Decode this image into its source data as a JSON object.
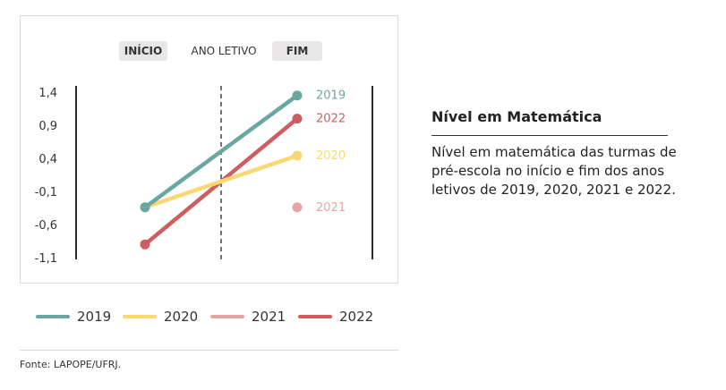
{
  "chart_data": {
    "type": "line",
    "header": {
      "start_label": "INÍCIO",
      "period_label": "ANO LETIVO",
      "end_label": "FIM"
    },
    "categories": [
      "INÍCIO",
      "FIM"
    ],
    "ylim": [
      -1.1,
      1.4
    ],
    "yticks": [
      "1,4",
      "0,9",
      "0,4",
      "-0,1",
      "-0,6",
      "-1,1"
    ],
    "ytick_values": [
      1.4,
      0.9,
      0.4,
      -0.1,
      -0.6,
      -1.1
    ],
    "series": [
      {
        "name": "2019",
        "color": "#6aa7a0",
        "values": [
          -0.34,
          1.35
        ]
      },
      {
        "name": "2020",
        "color": "#fbd772",
        "values": [
          -0.34,
          0.44
        ]
      },
      {
        "name": "2021",
        "color": "#e8a4a2",
        "values": [
          null,
          -0.34
        ]
      },
      {
        "name": "2022",
        "color": "#cd5d5e",
        "values": [
          -0.9,
          1.0
        ]
      }
    ],
    "legend_position": "bottom"
  },
  "side": {
    "title": "Nível em Matemática",
    "description": "Nível em matemática das turmas de pré-escola no início e fim dos anos letivos de 2019, 2020, 2021 e 2022."
  },
  "source": "Fonte: LAPOPE/UFRJ."
}
